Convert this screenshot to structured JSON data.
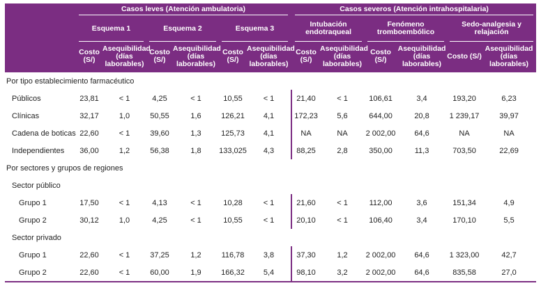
{
  "header": {
    "leves_title": "Casos leves (Atención ambulatoria)",
    "severos_title": "Casos severos (Atención intrahospitalaria)",
    "groups": [
      "Esquema 1",
      "Esquema 2",
      "Esquema 3",
      "Intubación endotraqueal",
      "Fenómeno tromboembólico",
      "Sedo-analgesia y relajación"
    ],
    "costo": "Costo (S/)",
    "asequibilidad": "Asequibilidad (días laborables)"
  },
  "sections": {
    "tipo": "Por tipo establecimiento farmacéutico",
    "sectores": "Por sectores y grupos de regiones",
    "publico": "Sector público",
    "privado": "Sector privado"
  },
  "rows": {
    "publicos": {
      "label": "Públicos",
      "v": [
        "23,81",
        "< 1",
        "4,25",
        "< 1",
        "10,55",
        "< 1",
        "21,40",
        "< 1",
        "106,61",
        "3,4",
        "193,20",
        "6,23"
      ]
    },
    "clinicas": {
      "label": "Clínicas",
      "v": [
        "32,17",
        "1,0",
        "50,55",
        "1,6",
        "126,21",
        "4,1",
        "172,23",
        "5,6",
        "644,00",
        "20,8",
        "1 239,17",
        "39,97"
      ]
    },
    "cadena": {
      "label": "Cadena de boticas",
      "v": [
        "22,60",
        "< 1",
        "39,60",
        "1,3",
        "125,73",
        "4,1",
        "NA",
        "NA",
        "2 002,00",
        "64,6",
        "NA",
        "NA"
      ]
    },
    "independ": {
      "label": "Independientes",
      "v": [
        "36,00",
        "1,2",
        "56,38",
        "1,8",
        "133,025",
        "4,3",
        "88,25",
        "2,8",
        "350,00",
        "11,3",
        "703,50",
        "22,69"
      ]
    },
    "pub_g1": {
      "label": "Grupo 1",
      "v": [
        "17,50",
        "< 1",
        "4,13",
        "< 1",
        "10,28",
        "< 1",
        "21,60",
        "< 1",
        "112,00",
        "3,6",
        "151,34",
        "4,9"
      ]
    },
    "pub_g2": {
      "label": "Grupo 2",
      "v": [
        "30,12",
        "1,0",
        "4,25",
        "< 1",
        "10,55",
        "< 1",
        "20,10",
        "< 1",
        "106,40",
        "3,4",
        "170,10",
        "5,5"
      ]
    },
    "priv_g1": {
      "label": "Grupo 1",
      "v": [
        "22,60",
        "< 1",
        "37,25",
        "1,2",
        "116,78",
        "3,8",
        "37,30",
        "1,2",
        "2 002,00",
        "64,6",
        "1 323,00",
        "42,7"
      ]
    },
    "priv_g2": {
      "label": "Grupo 2",
      "v": [
        "22,60",
        "< 1",
        "60,00",
        "1,9",
        "166,32",
        "5,4",
        "98,10",
        "3,2",
        "2 002,00",
        "64,6",
        "835,58",
        "27,0"
      ]
    }
  }
}
